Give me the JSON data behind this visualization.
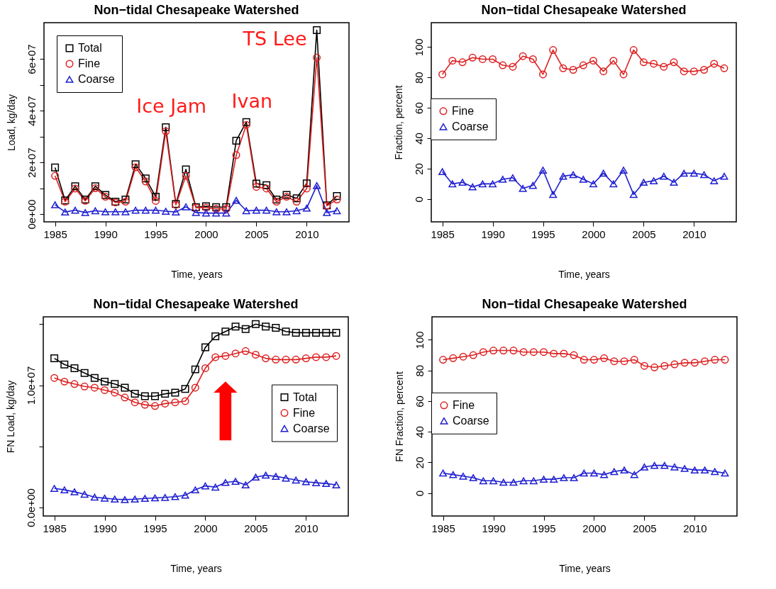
{
  "chart_data": [
    {
      "type": "line",
      "title": "Non−tidal Chesapeake Watershed",
      "xlabel": "Time, years",
      "ylabel": "Load, kg/day",
      "legend": "top left",
      "x": [
        1985,
        1986,
        1987,
        1988,
        1989,
        1990,
        1991,
        1992,
        1993,
        1994,
        1995,
        1996,
        1997,
        1998,
        1999,
        2000,
        2001,
        2002,
        2003,
        2004,
        2005,
        2006,
        2007,
        2008,
        2009,
        2010,
        2011,
        2012,
        2013
      ],
      "xlim": [
        1983.9,
        2014.2
      ],
      "xticks": [
        1985,
        1990,
        1995,
        2000,
        2005,
        2010
      ],
      "ylim": [
        -3000000,
        74000000
      ],
      "yticks": [
        {
          "value": 0,
          "label": "0e+00"
        },
        {
          "value": 10000000,
          "label": null
        },
        {
          "value": 20000000,
          "label": "2e+07"
        },
        {
          "value": 30000000,
          "label": null
        },
        {
          "value": 40000000,
          "label": "4e+07"
        },
        {
          "value": 50000000,
          "label": null
        },
        {
          "value": 60000000,
          "label": "6e+07"
        }
      ],
      "series": [
        {
          "name": "Total",
          "color": "#000000",
          "marker": "square",
          "values": [
            18000000,
            5300000,
            10800000,
            5600000,
            10800000,
            7400000,
            4800000,
            5600000,
            19300000,
            13800000,
            6700000,
            33600000,
            3900000,
            17300000,
            2700000,
            3000000,
            2700000,
            2700000,
            28400000,
            35600000,
            11800000,
            11200000,
            5600000,
            7400000,
            6100000,
            11900000,
            71100000,
            3400000,
            7000000
          ]
        },
        {
          "name": "Fine",
          "color": "#dd2020",
          "marker": "circle",
          "values": [
            14800000,
            4800000,
            9900000,
            5100000,
            10000000,
            6700000,
            4500000,
            4800000,
            18100000,
            12600000,
            5100000,
            32000000,
            3600000,
            14800000,
            2500000,
            2500000,
            2000000,
            2000000,
            22800000,
            34500000,
            10500000,
            9900000,
            4800000,
            6700000,
            4800000,
            9900000,
            60500000,
            3200000,
            5600000
          ]
        },
        {
          "name": "Coarse",
          "color": "#1f1fd0",
          "marker": "triangle",
          "values": [
            3600000,
            800000,
            1500000,
            600000,
            1300000,
            900000,
            900000,
            900000,
            1500000,
            1500000,
            1500000,
            1100000,
            800000,
            2800000,
            600000,
            400000,
            400000,
            400000,
            5300000,
            1300000,
            1500000,
            1500000,
            900000,
            900000,
            1300000,
            2300000,
            11000000,
            600000,
            1300000
          ]
        }
      ],
      "annotations": [
        {
          "text": "Ice Jam",
          "x": 1996,
          "y": 33600000
        },
        {
          "text": "Ivan",
          "x": 2004,
          "y": 35600000
        },
        {
          "text": "TS Lee",
          "x": 2011,
          "y": 71100000
        }
      ]
    },
    {
      "type": "line",
      "title": "Non−tidal Chesapeake Watershed",
      "xlabel": "Time, years",
      "ylabel": "Fraction, percent",
      "legend": "left",
      "x": [
        1985,
        1986,
        1987,
        1988,
        1989,
        1990,
        1991,
        1992,
        1993,
        1994,
        1995,
        1996,
        1997,
        1998,
        1999,
        2000,
        2001,
        2002,
        2003,
        2004,
        2005,
        2006,
        2007,
        2008,
        2009,
        2010,
        2011,
        2012,
        2013
      ],
      "xlim": [
        1983.9,
        2014.2
      ],
      "xticks": [
        1985,
        1990,
        1995,
        2000,
        2005,
        2010
      ],
      "ylim": [
        -15,
        116
      ],
      "yticks": [
        0,
        20,
        40,
        60,
        80,
        100
      ],
      "series": [
        {
          "name": "Fine",
          "color": "#dd2020",
          "marker": "circle",
          "values": [
            82,
            91,
            90,
            93,
            92,
            92,
            88,
            87,
            94,
            92,
            82,
            98,
            86,
            85,
            88,
            91,
            84,
            91,
            82,
            98,
            90,
            89,
            87,
            90,
            84,
            84,
            85,
            89,
            86
          ]
        },
        {
          "name": "Coarse",
          "color": "#1f1fd0",
          "marker": "triangle",
          "values": [
            18,
            10,
            11,
            8,
            10,
            10,
            13,
            14,
            7,
            9,
            19,
            3,
            15,
            16,
            13,
            10,
            17,
            10,
            19,
            3,
            11,
            12,
            15,
            11,
            17,
            17,
            16,
            12,
            15
          ]
        }
      ]
    },
    {
      "type": "line",
      "title": "Non−tidal Chesapeake Watershed",
      "xlabel": "Time, years",
      "ylabel": "FN Load, kg/day",
      "legend": "right",
      "x": [
        1985,
        1986,
        1987,
        1988,
        1989,
        1990,
        1991,
        1992,
        1993,
        1994,
        1995,
        1996,
        1997,
        1998,
        1999,
        2000,
        2001,
        2002,
        2003,
        2004,
        2005,
        2006,
        2007,
        2008,
        2009,
        2010,
        2011,
        2012,
        2013
      ],
      "xlim": [
        1983.9,
        2014.2
      ],
      "xticks": [
        1985,
        1990,
        1995,
        2000,
        2005,
        2010
      ],
      "ylim": [
        -700000,
        15600000
      ],
      "yticks": [
        {
          "value": 0,
          "label": "0.0e+00"
        },
        {
          "value": 5000000,
          "label": null
        },
        {
          "value": 10000000,
          "label": "1.0e+07"
        },
        {
          "value": 15000000,
          "label": null
        }
      ],
      "series": [
        {
          "name": "Total",
          "color": "#000000",
          "marker": "square",
          "values": [
            12200000,
            11700000,
            11400000,
            11000000,
            10600000,
            10300000,
            10100000,
            9800000,
            9300000,
            9100000,
            9100000,
            9300000,
            9400000,
            9700000,
            11300000,
            13100000,
            14000000,
            14400000,
            14800000,
            14600000,
            15000000,
            14800000,
            14700000,
            14400000,
            14300000,
            14300000,
            14300000,
            14300000,
            14300000
          ]
        },
        {
          "name": "Fine",
          "color": "#dd2020",
          "marker": "circle",
          "values": [
            10600000,
            10300000,
            10100000,
            9900000,
            9800000,
            9600000,
            9400000,
            9000000,
            8600000,
            8400000,
            8300000,
            8500000,
            8600000,
            8700000,
            9800000,
            11400000,
            12300000,
            12400000,
            12600000,
            12800000,
            12500000,
            12200000,
            12100000,
            12100000,
            12100000,
            12200000,
            12300000,
            12300000,
            12400000
          ]
        },
        {
          "name": "Coarse",
          "color": "#1f1fd0",
          "marker": "triangle",
          "values": [
            1560000,
            1440000,
            1280000,
            1080000,
            840000,
            760000,
            680000,
            640000,
            680000,
            740000,
            780000,
            820000,
            880000,
            1000000,
            1440000,
            1760000,
            1660000,
            2040000,
            2140000,
            1840000,
            2480000,
            2640000,
            2540000,
            2400000,
            2240000,
            2100000,
            2020000,
            1960000,
            1840000
          ]
        }
      ]
    },
    {
      "type": "line",
      "title": "Non−tidal Chesapeake Watershed",
      "xlabel": "Time, years",
      "ylabel": "FN Fraction, percent",
      "legend": "left",
      "x": [
        1985,
        1986,
        1987,
        1988,
        1989,
        1990,
        1991,
        1992,
        1993,
        1994,
        1995,
        1996,
        1997,
        1998,
        1999,
        2000,
        2001,
        2002,
        2003,
        2004,
        2005,
        2006,
        2007,
        2008,
        2009,
        2010,
        2011,
        2012,
        2013
      ],
      "xlim": [
        1983.9,
        2014.2
      ],
      "xticks": [
        1985,
        1990,
        1995,
        2000,
        2005,
        2010
      ],
      "ylim": [
        -15,
        115
      ],
      "yticks": [
        0,
        20,
        40,
        60,
        80,
        100
      ],
      "series": [
        {
          "name": "Fine",
          "color": "#dd2020",
          "marker": "circle",
          "values": [
            87,
            88,
            89,
            90,
            92,
            93,
            93,
            93,
            92,
            92,
            92,
            91,
            91,
            90,
            87,
            87,
            88,
            86,
            86,
            87,
            83,
            82,
            83,
            84,
            85,
            85,
            86,
            87,
            87
          ]
        },
        {
          "name": "Coarse",
          "color": "#1f1fd0",
          "marker": "triangle",
          "values": [
            13,
            12,
            11,
            10,
            8,
            8,
            7,
            7,
            8,
            8,
            9,
            9,
            10,
            10,
            13,
            13,
            12,
            14,
            15,
            12,
            17,
            18,
            18,
            17,
            16,
            15,
            15,
            14,
            13
          ]
        }
      ]
    }
  ]
}
